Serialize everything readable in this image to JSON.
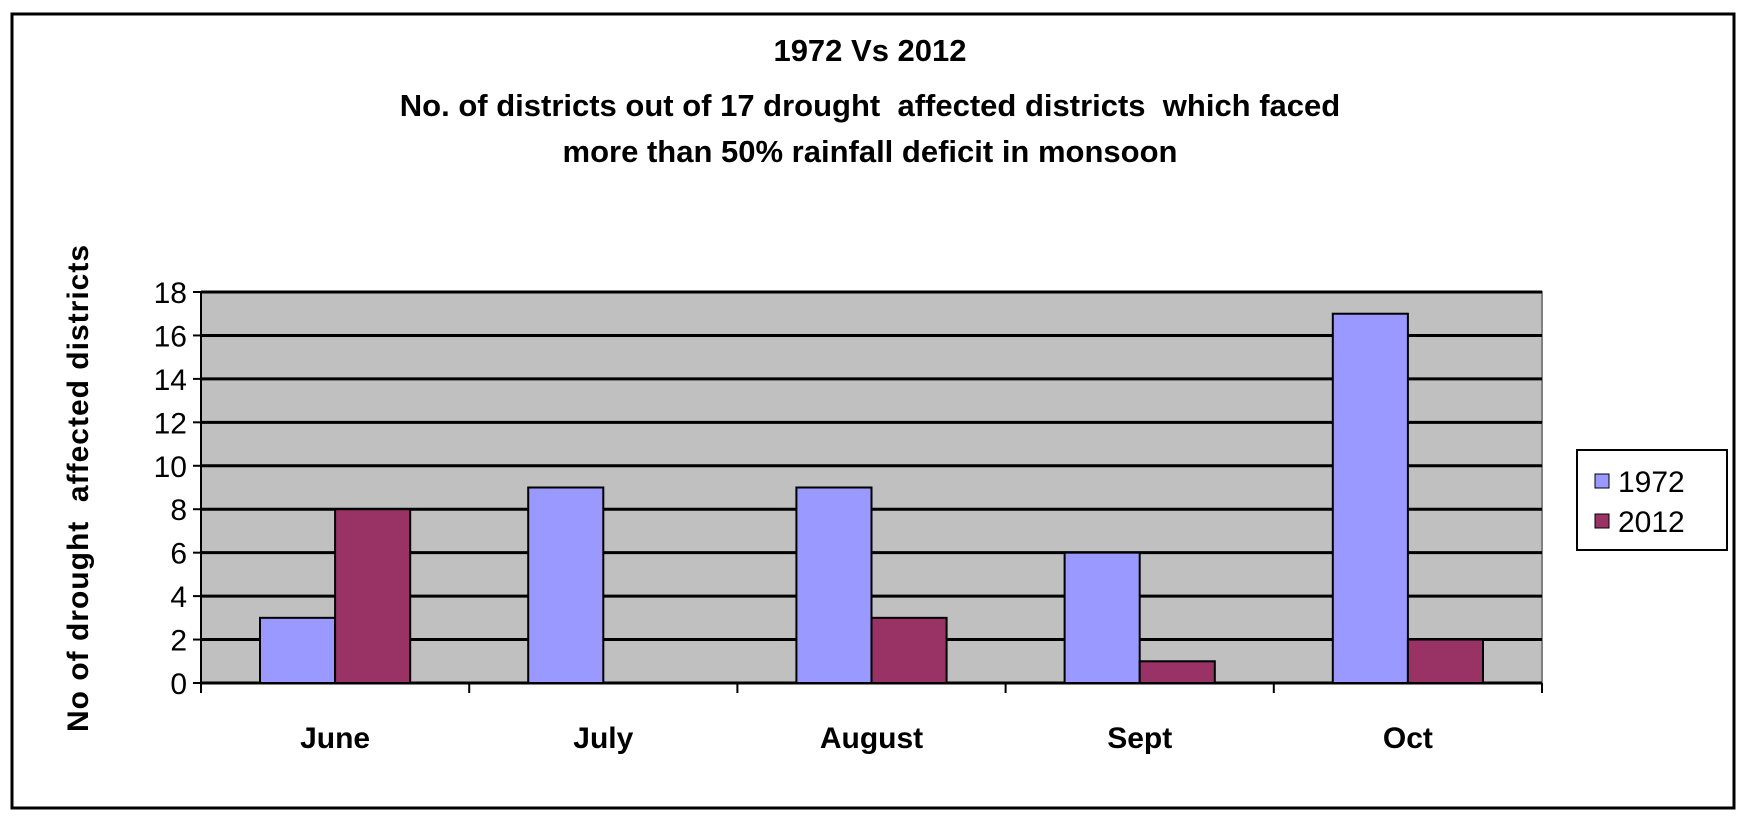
{
  "chart_data": {
    "type": "bar",
    "title": [
      "1972 Vs 2012",
      "No. of districts out of 17 drought  affected districts  which faced",
      "more than 50% rainfall deficit in monsoon"
    ],
    "xlabel": "",
    "ylabel": "No of drought  affected districts",
    "categories": [
      "June",
      "July",
      "August",
      "Sept",
      "Oct"
    ],
    "series": [
      {
        "name": "1972",
        "values": [
          3,
          9,
          9,
          6,
          17
        ],
        "color": "#9999FF"
      },
      {
        "name": "2012",
        "values": [
          8,
          0,
          3,
          1,
          2
        ],
        "color": "#993366"
      }
    ],
    "ylim": [
      0,
      18
    ],
    "yticks": [
      "0",
      "2",
      "4",
      "6",
      "8",
      "10",
      "12",
      "14",
      "16",
      "18"
    ],
    "grid": true,
    "plot_background": "#C0C0C0",
    "legend_position": "right"
  }
}
